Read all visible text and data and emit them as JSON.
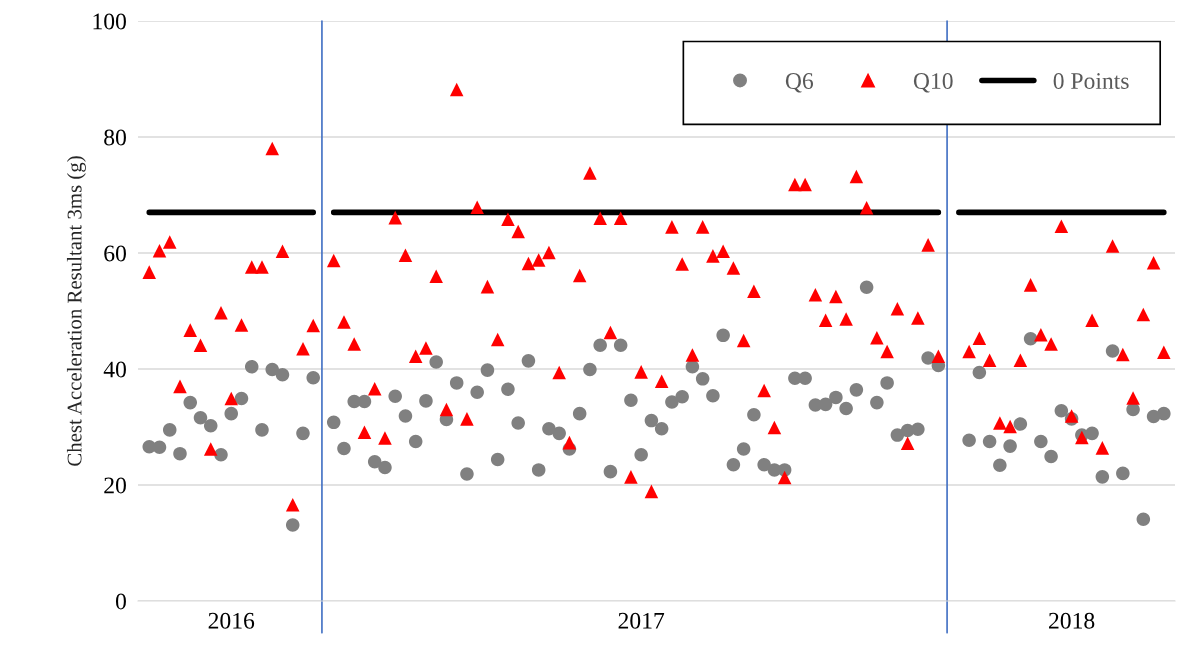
{
  "chart_data": {
    "type": "scatter",
    "ylabel": "Chest Acceleration Resultant 3ms (g)",
    "categories": [
      null,
      null,
      null,
      null,
      null,
      null,
      null,
      null,
      "2016",
      null,
      null,
      null,
      null,
      null,
      null,
      null,
      null,
      null,
      null,
      null,
      null,
      null,
      null,
      null,
      null,
      null,
      null,
      null,
      null,
      null,
      null,
      null,
      null,
      null,
      null,
      null,
      null,
      null,
      null,
      null,
      null,
      null,
      null,
      null,
      null,
      null,
      null,
      null,
      "2017",
      null,
      null,
      null,
      null,
      null,
      null,
      null,
      null,
      null,
      null,
      null,
      null,
      null,
      null,
      null,
      null,
      null,
      null,
      null,
      null,
      null,
      null,
      null,
      null,
      null,
      null,
      null,
      null,
      null,
      null,
      null,
      null,
      null,
      null,
      null,
      null,
      null,
      null,
      null,
      null,
      null,
      "2018",
      null,
      null,
      null,
      null,
      null,
      null,
      null,
      null,
      null
    ],
    "series": [
      {
        "name": "Q6",
        "marker": "circle",
        "color": "#808080",
        "values": [
          26.6,
          26.5,
          29.5,
          25.4,
          34.2,
          31.6,
          30.2,
          25.2,
          32.3,
          34.9,
          40.4,
          29.5,
          39.9,
          39.0,
          13.1,
          28.9,
          38.5,
          null,
          30.8,
          26.3,
          34.4,
          34.4,
          24.0,
          23.0,
          35.3,
          31.9,
          27.5,
          34.5,
          41.2,
          31.3,
          37.6,
          21.9,
          36.0,
          39.8,
          24.4,
          36.5,
          30.7,
          41.4,
          22.6,
          29.7,
          28.9,
          26.2,
          32.3,
          39.9,
          44.1,
          22.3,
          44.1,
          34.6,
          25.2,
          31.1,
          29.7,
          34.3,
          35.2,
          40.4,
          38.3,
          35.4,
          45.8,
          23.5,
          26.2,
          32.1,
          23.5,
          22.6,
          22.6,
          38.4,
          38.4,
          33.8,
          33.9,
          35.1,
          33.2,
          36.4,
          54.1,
          34.2,
          37.6,
          28.6,
          29.4,
          29.6,
          41.9,
          40.6,
          null,
          null,
          27.7,
          39.4,
          27.5,
          23.4,
          26.7,
          30.5,
          45.2,
          27.5,
          24.9,
          32.8,
          31.4,
          28.6,
          28.9,
          21.4,
          43.1,
          22.0,
          33.0,
          14.1,
          31.8,
          32.3
        ]
      },
      {
        "name": "Q10",
        "marker": "triangle",
        "color": "#ff0000",
        "values": [
          56.7,
          60.4,
          61.9,
          37.0,
          46.7,
          44.1,
          26.2,
          49.7,
          34.9,
          47.6,
          57.6,
          57.6,
          78.0,
          60.3,
          16.6,
          43.5,
          47.5,
          null,
          58.7,
          48.1,
          44.3,
          29.1,
          36.6,
          28.1,
          66.1,
          59.6,
          42.2,
          43.6,
          56.0,
          33.0,
          88.2,
          31.4,
          67.9,
          54.2,
          45.1,
          65.8,
          63.7,
          58.2,
          58.8,
          60.1,
          39.4,
          27.3,
          56.1,
          73.8,
          66.0,
          46.3,
          66.0,
          21.4,
          39.5,
          18.9,
          37.9,
          64.5,
          58.1,
          42.4,
          64.5,
          59.5,
          60.3,
          57.4,
          44.9,
          53.4,
          36.3,
          29.9,
          21.3,
          71.8,
          71.8,
          52.8,
          48.4,
          52.5,
          48.6,
          73.2,
          67.8,
          45.4,
          43.0,
          50.4,
          27.2,
          48.8,
          61.4,
          42.2,
          null,
          null,
          43.0,
          45.3,
          41.5,
          30.7,
          30.1,
          41.5,
          54.5,
          45.9,
          44.3,
          64.6,
          31.9,
          28.2,
          48.4,
          26.4,
          61.2,
          42.5,
          35.0,
          49.4,
          58.3,
          42.9
        ]
      },
      {
        "name": "0 Points",
        "type": "line",
        "marker": "none",
        "color": "#000000",
        "values": [
          67,
          67,
          67,
          67,
          67,
          67,
          67,
          67,
          67,
          67,
          67,
          67,
          67,
          67,
          67,
          67,
          67,
          null,
          67,
          67,
          67,
          67,
          67,
          67,
          67,
          67,
          67,
          67,
          67,
          67,
          67,
          67,
          67,
          67,
          67,
          67,
          67,
          67,
          67,
          67,
          67,
          67,
          67,
          67,
          67,
          67,
          67,
          67,
          67,
          67,
          67,
          67,
          67,
          67,
          67,
          67,
          67,
          67,
          67,
          67,
          67,
          67,
          67,
          67,
          67,
          67,
          67,
          67,
          67,
          67,
          67,
          67,
          67,
          67,
          67,
          67,
          67,
          67,
          null,
          67,
          67,
          67,
          67,
          67,
          67,
          67,
          67,
          67,
          67,
          67,
          67,
          67,
          67,
          67,
          67,
          67,
          67,
          67,
          67,
          67
        ]
      }
    ],
    "ylim": [
      0,
      100
    ],
    "yticks": [
      0,
      20,
      40,
      60,
      80,
      100
    ],
    "grid": "y",
    "legend": "top right"
  }
}
